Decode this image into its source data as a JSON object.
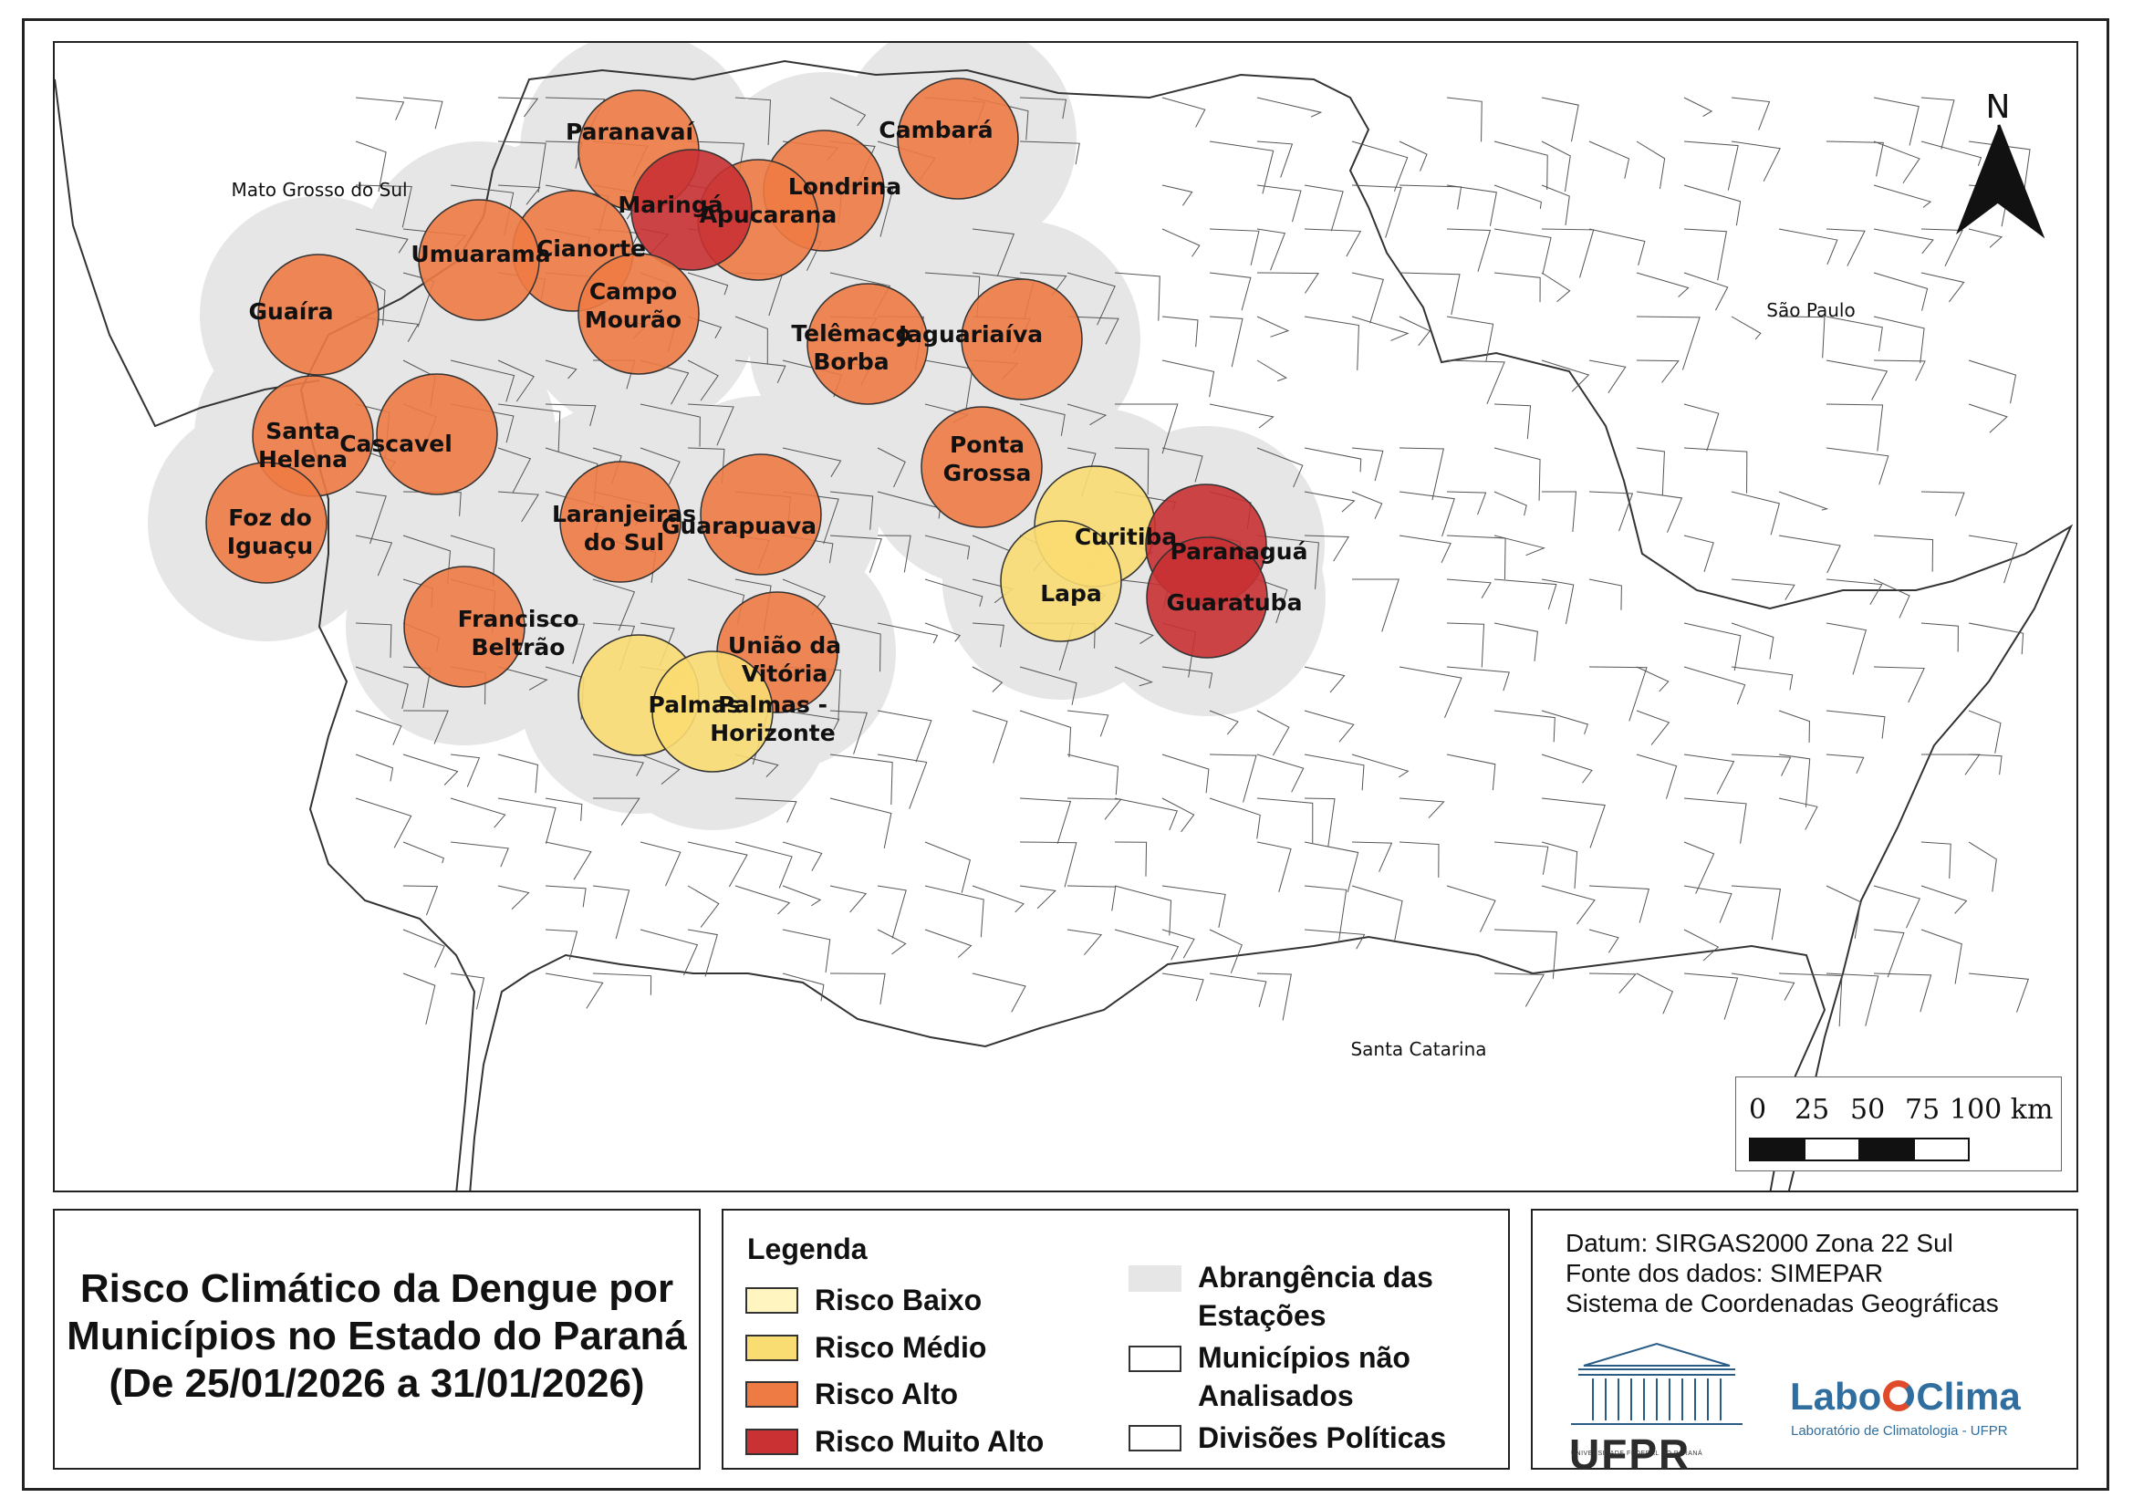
{
  "title": {
    "line1": "Risco Climático da Dengue por",
    "line2": "Municípios no Estado do Paraná",
    "line3": "(De 25/01/2026 a 31/01/2026)"
  },
  "legend": {
    "heading": "Legenda",
    "risk_items": [
      {
        "label": "Risco Baixo",
        "color": "#fff5c0"
      },
      {
        "label": "Risco Médio",
        "color": "#f9dc72"
      },
      {
        "label": "Risco Alto",
        "color": "#ee7a44"
      },
      {
        "label": "Risco Muito Alto",
        "color": "#c93133"
      }
    ],
    "other_items": [
      {
        "label1": "Abrangência das",
        "label2": "Estações",
        "style": "coverage",
        "color": "#e6e6e6"
      },
      {
        "label1": "Municípios não",
        "label2": "Analisados",
        "style": "outline",
        "color": "#ffffff"
      },
      {
        "label1": "Divisões Políticas",
        "label2": "",
        "style": "outline",
        "color": "#ffffff"
      }
    ]
  },
  "info": {
    "datum": "Datum: SIRGAS2000 Zona 22 Sul",
    "source": "Fonte dos dados: SIMEPAR",
    "crs": "Sistema de Coordenadas Geográficas",
    "ufpr_word": "UFPR",
    "ufpr_sub": "UNIVERSIDADE FEDERAL DO PARANÁ",
    "labo_left": "Labo",
    "labo_right": "Clima",
    "labo_sub": "Laboratório de Climatologia - UFPR"
  },
  "map": {
    "north": "N",
    "regions": [
      "Mato Grosso do Sul",
      "São Paulo",
      "Santa Catarina"
    ],
    "scale": {
      "ticks": [
        "0",
        "25",
        "50",
        "75",
        "100 km"
      ]
    },
    "stations": [
      {
        "name": [
          "Paranavaí"
        ],
        "risk": "alto"
      },
      {
        "name": [
          "Cambará"
        ],
        "risk": "alto"
      },
      {
        "name": [
          "Londrina"
        ],
        "risk": "alto"
      },
      {
        "name": [
          "Apucarana"
        ],
        "risk": "alto"
      },
      {
        "name": [
          "Maringá"
        ],
        "risk": "muito_alto"
      },
      {
        "name": [
          "Cianorte"
        ],
        "risk": "alto"
      },
      {
        "name": [
          "Umuarama"
        ],
        "risk": "alto"
      },
      {
        "name": [
          "Campo",
          "Mourão"
        ],
        "risk": "alto"
      },
      {
        "name": [
          "Guaíra"
        ],
        "risk": "alto"
      },
      {
        "name": [
          "Telêmaco",
          "Borba"
        ],
        "risk": "alto"
      },
      {
        "name": [
          "Jaguariaíva"
        ],
        "risk": "alto"
      },
      {
        "name": [
          "Santa",
          "Helena"
        ],
        "risk": "alto"
      },
      {
        "name": [
          "Cascavel"
        ],
        "risk": "alto"
      },
      {
        "name": [
          "Ponta",
          "Grossa"
        ],
        "risk": "alto"
      },
      {
        "name": [
          "Foz do",
          "Iguaçu"
        ],
        "risk": "alto"
      },
      {
        "name": [
          "Laranjeiras",
          "do Sul"
        ],
        "risk": "alto"
      },
      {
        "name": [
          "Guarapuava"
        ],
        "risk": "alto"
      },
      {
        "name": [
          "Curitiba"
        ],
        "risk": "medio"
      },
      {
        "name": [
          "Paranaguá"
        ],
        "risk": "muito_alto"
      },
      {
        "name": [
          "Lapa"
        ],
        "risk": "medio"
      },
      {
        "name": [
          "Guaratuba"
        ],
        "risk": "muito_alto"
      },
      {
        "name": [
          "Francisco",
          "Beltrão"
        ],
        "risk": "alto"
      },
      {
        "name": [
          "União da",
          "Vitória"
        ],
        "risk": "alto"
      },
      {
        "name": [
          "Palmas"
        ],
        "risk": "medio"
      },
      {
        "name": [
          "Palmas -",
          "Horizonte"
        ],
        "risk": "medio"
      }
    ]
  }
}
